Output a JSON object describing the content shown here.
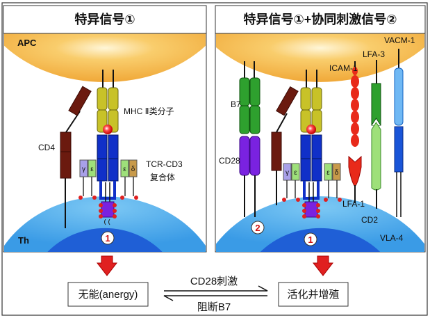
{
  "left_panel": {
    "title": "特异信号①",
    "apc_label": "APC",
    "th_label": "Th",
    "mhc_label": "MHC Ⅱ类分子",
    "cd4_label": "CD4",
    "tcr_label_line1": "TCR-CD3",
    "tcr_label_line2": "复合体",
    "signal_marker": "1",
    "cd3_chains": [
      "γ",
      "ε",
      "ε",
      "δ"
    ]
  },
  "right_panel": {
    "title": "特异信号①+协同刺激信号②",
    "b7_label": "B7",
    "cd28_label": "CD28",
    "icam_label": "ICAM-1",
    "lfa3_label": "LFA-3",
    "vacm_label": "VACM-1",
    "lfa1_label": "LFA-1",
    "cd2_label": "CD2",
    "vla4_label": "VLA-4",
    "signal_marker_1": "1",
    "signal_marker_2": "2",
    "cd3_chains": [
      "γ",
      "ε",
      "ε",
      "δ"
    ]
  },
  "outcome": {
    "anergy_label": "无能(anergy)",
    "activation_label": "活化并增殖",
    "forward_label": "CD28刺激",
    "reverse_label": "阻断B7"
  },
  "colors": {
    "apc": "#f5b94a",
    "th_cell": "#4aa8ea",
    "nucleus": "#1f5fd6",
    "mhc": "#c8c228",
    "tcr": "#1030c8",
    "cd4": "#6b1a0f",
    "b7": "#2ea02e",
    "cd28": "#7a22e0",
    "icam": "#e82a1a",
    "arrow": "#e02020",
    "marker": "#d01010"
  }
}
